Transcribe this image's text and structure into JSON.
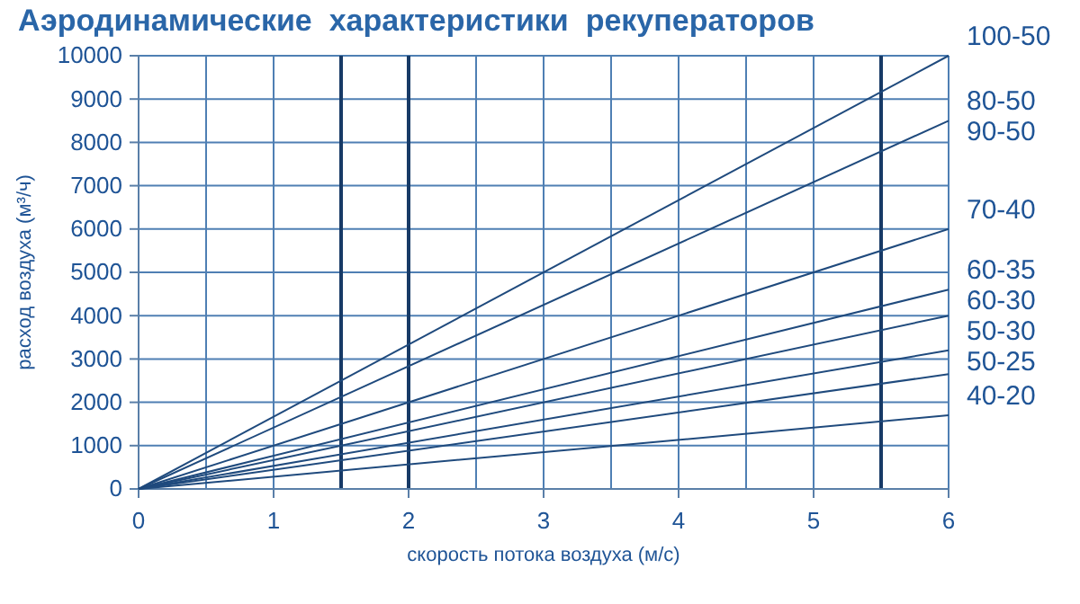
{
  "chart_data": {
    "type": "line",
    "title": "Аэродинамические  характеристики  рекуператоров",
    "xlabel": "скорость потока воздуха (м/с)",
    "ylabel": "расход воздуха (м³/ч)",
    "x": [
      0,
      6
    ],
    "xlim": [
      0,
      6
    ],
    "xticks": [
      0,
      1,
      2,
      3,
      4,
      5,
      6
    ],
    "ylim": [
      0,
      10000
    ],
    "yticks": [
      0,
      1000,
      2000,
      3000,
      4000,
      5000,
      6000,
      7000,
      8000,
      9000,
      10000
    ],
    "grid": true,
    "marker": "none",
    "line_style": "solid",
    "legend": false,
    "series": [
      {
        "name": "100-50",
        "color": "#1f4a7d",
        "values": [
          0,
          10000
        ]
      },
      {
        "name": "80-50",
        "color": "#1f4a7d",
        "values": [
          0,
          8500
        ]
      },
      {
        "name": "70-40",
        "color": "#1f4a7d",
        "values": [
          0,
          6000
        ]
      },
      {
        "name": "60-35",
        "color": "#1f4a7d",
        "values": [
          0,
          4600
        ]
      },
      {
        "name": "60-30",
        "color": "#1f4a7d",
        "values": [
          0,
          4000
        ]
      },
      {
        "name": "50-30",
        "color": "#1f4a7d",
        "values": [
          0,
          3200
        ]
      },
      {
        "name": "50-25",
        "color": "#1f4a7d",
        "values": [
          0,
          2650
        ]
      },
      {
        "name": "40-20",
        "color": "#1f4a7d",
        "values": [
          0,
          1700
        ]
      }
    ],
    "annotations": [
      {
        "text": "90-50",
        "x": 6,
        "y": 8500
      }
    ],
    "ref_lines": [
      {
        "axis": "x",
        "value": 1.5,
        "color": "#173a66"
      },
      {
        "axis": "x",
        "value": 2,
        "color": "#173a66"
      },
      {
        "axis": "x",
        "value": 5.5,
        "color": "#173a66"
      }
    ]
  }
}
